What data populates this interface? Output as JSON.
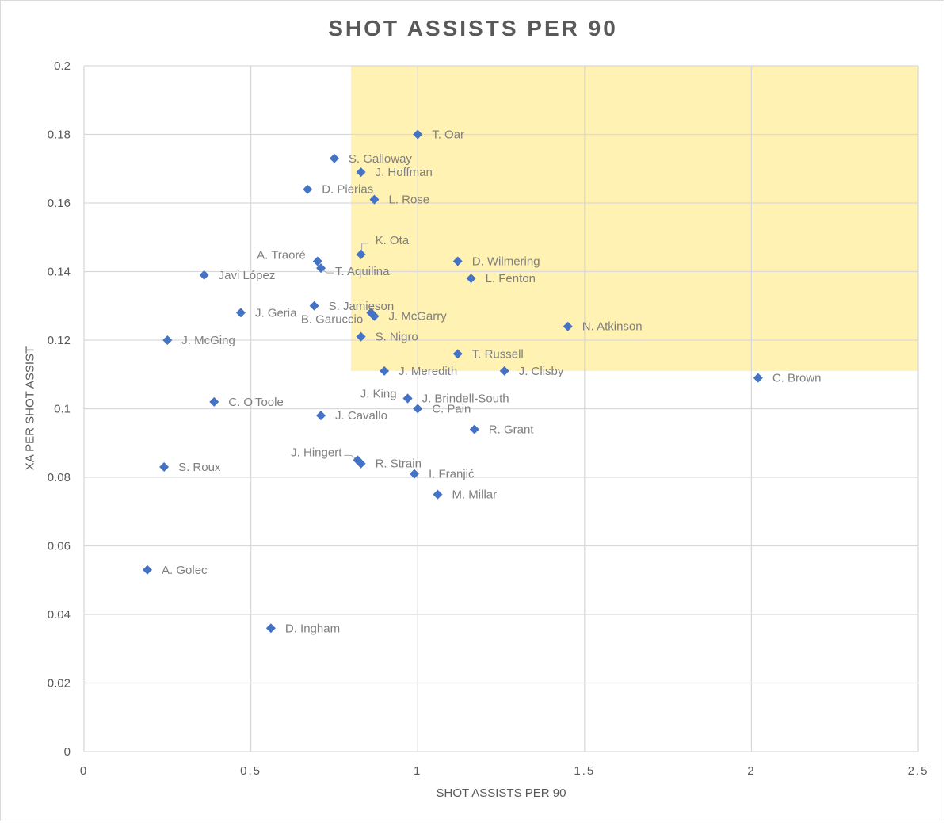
{
  "chart_data": {
    "type": "scatter",
    "title": "SHOT ASSISTS PER 90",
    "xlabel": "SHOT ASSISTS PER 90",
    "ylabel": "XA PER SHOT ASSIST",
    "xlim": [
      0,
      2.5
    ],
    "ylim": [
      0,
      0.2
    ],
    "x_ticks": [
      0,
      0.5,
      1,
      1.5,
      2,
      2.5
    ],
    "x_tick_labels": [
      "0",
      "0.5",
      "1",
      "1.5",
      "2",
      "2.5"
    ],
    "y_ticks": [
      0,
      0.02,
      0.04,
      0.06,
      0.08,
      0.1,
      0.12,
      0.14,
      0.16,
      0.18,
      0.2
    ],
    "y_tick_labels": [
      "0",
      "0.02",
      "0.04",
      "0.06",
      "0.08",
      "0.1",
      "0.12",
      "0.14",
      "0.16",
      "0.18",
      "0.2"
    ],
    "grid": true,
    "highlight_region": {
      "x": [
        0.8,
        2.5
      ],
      "y": [
        0.111,
        0.2
      ],
      "color": "#fff2b3"
    },
    "marker": {
      "shape": "diamond",
      "color": "#4472c4"
    },
    "label_color": "#7f7f7f",
    "points": [
      {
        "label": "T. Oar",
        "x": 1.0,
        "y": 0.18
      },
      {
        "label": "S. Galloway",
        "x": 0.75,
        "y": 0.173
      },
      {
        "label": "J. Hoffman",
        "x": 0.83,
        "y": 0.169
      },
      {
        "label": "D. Pierias",
        "x": 0.67,
        "y": 0.164
      },
      {
        "label": "L. Rose",
        "x": 0.87,
        "y": 0.161
      },
      {
        "label": "K. Ota",
        "x": 0.83,
        "y": 0.145
      },
      {
        "label": "A. Traoré",
        "x": 0.7,
        "y": 0.143
      },
      {
        "label": "T. Aquilina",
        "x": 0.71,
        "y": 0.141
      },
      {
        "label": "D. Wilmering",
        "x": 1.12,
        "y": 0.143
      },
      {
        "label": "Javi López",
        "x": 0.36,
        "y": 0.139
      },
      {
        "label": "L. Fenton",
        "x": 1.16,
        "y": 0.138
      },
      {
        "label": "S. Jamieson",
        "x": 0.69,
        "y": 0.13
      },
      {
        "label": "J. Geria",
        "x": 0.47,
        "y": 0.128
      },
      {
        "label": "B. Garuccio",
        "x": 0.86,
        "y": 0.128
      },
      {
        "label": "J. McGarry",
        "x": 0.87,
        "y": 0.127
      },
      {
        "label": "N. Atkinson",
        "x": 1.45,
        "y": 0.124
      },
      {
        "label": "J. McGing",
        "x": 0.25,
        "y": 0.12
      },
      {
        "label": "S. Nigro",
        "x": 0.83,
        "y": 0.121
      },
      {
        "label": "T. Russell",
        "x": 1.12,
        "y": 0.116
      },
      {
        "label": "J. Meredith",
        "x": 0.9,
        "y": 0.111
      },
      {
        "label": "J. Clisby",
        "x": 1.26,
        "y": 0.111
      },
      {
        "label": "C. Brown",
        "x": 2.02,
        "y": 0.109
      },
      {
        "label": "J. King",
        "x": 0.97,
        "y": 0.103
      },
      {
        "label": "J. Brindell-South",
        "x": 0.97,
        "y": 0.103
      },
      {
        "label": "C. O'Toole",
        "x": 0.39,
        "y": 0.102
      },
      {
        "label": "C. Pain",
        "x": 1.0,
        "y": 0.1
      },
      {
        "label": "J. Cavallo",
        "x": 0.71,
        "y": 0.098
      },
      {
        "label": "R. Grant",
        "x": 1.17,
        "y": 0.094
      },
      {
        "label": "J. Hingert",
        "x": 0.82,
        "y": 0.085
      },
      {
        "label": "R. Strain",
        "x": 0.83,
        "y": 0.084
      },
      {
        "label": "S. Roux",
        "x": 0.24,
        "y": 0.083
      },
      {
        "label": "I. Franjić",
        "x": 0.99,
        "y": 0.081
      },
      {
        "label": "M. Millar",
        "x": 1.06,
        "y": 0.075
      },
      {
        "label": "A. Golec",
        "x": 0.19,
        "y": 0.053
      },
      {
        "label": "D. Ingham",
        "x": 0.56,
        "y": 0.036
      }
    ]
  }
}
